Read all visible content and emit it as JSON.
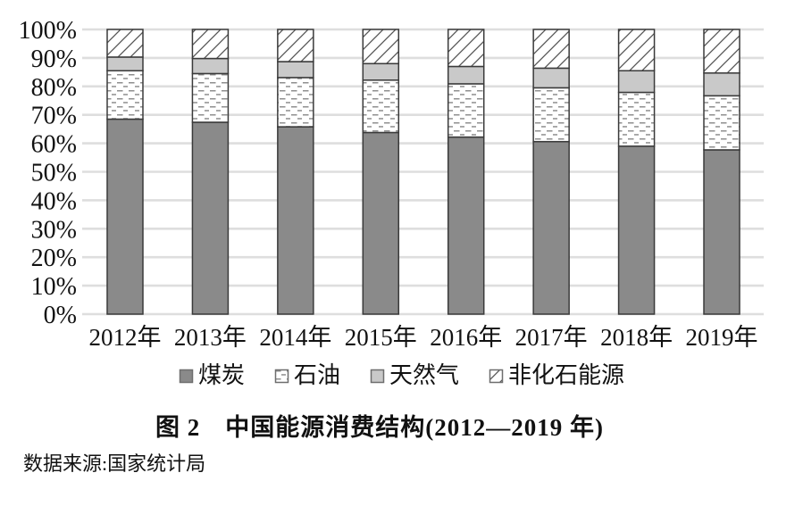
{
  "chart_data": {
    "type": "bar",
    "stacking": "percent",
    "title": "中国能源消费结构(2012—2019年)",
    "categories": [
      "2012年",
      "2013年",
      "2014年",
      "2015年",
      "2016年",
      "2017年",
      "2018年",
      "2019年"
    ],
    "series": [
      {
        "name": "煤炭",
        "pattern": "coal",
        "values": [
          68.5,
          67.4,
          65.8,
          63.8,
          62.2,
          60.6,
          59.0,
          57.7
        ]
      },
      {
        "name": "石油",
        "pattern": "oil",
        "values": [
          17.0,
          17.1,
          17.3,
          18.4,
          18.7,
          18.9,
          18.9,
          19.0
        ]
      },
      {
        "name": "天然气",
        "pattern": "gas",
        "values": [
          4.8,
          5.3,
          5.6,
          5.8,
          6.1,
          6.9,
          7.6,
          8.0
        ]
      },
      {
        "name": "非化石能源",
        "pattern": "nonfossil",
        "values": [
          9.7,
          10.2,
          11.3,
          12.0,
          13.0,
          13.6,
          14.5,
          15.3
        ]
      }
    ],
    "ylim": [
      0,
      100
    ],
    "ytick_step": 10,
    "ytick_suffix": "%",
    "xlabel": "",
    "ylabel": "",
    "grid": "horizontal",
    "legend_position": "bottom"
  },
  "legend": {
    "items": [
      {
        "label": "煤炭",
        "pattern": "coal"
      },
      {
        "label": "石油",
        "pattern": "oil"
      },
      {
        "label": "天然气",
        "pattern": "gas"
      },
      {
        "label": "非化石能源",
        "pattern": "nonfossil"
      }
    ]
  },
  "caption": {
    "text": "图 2　中国能源消费结构(2012—2019 年)"
  },
  "source": {
    "text": "数据来源:国家统计局"
  },
  "colors": {
    "coal": "#8a8a8a",
    "gas": "#c9c9c9",
    "pattern_bg": "#ffffff",
    "pattern_dash": "#8f8f8f",
    "pattern_hatch": "#555555",
    "bar_border": "#3a3a3a",
    "swatch_border": "#6e6e6e",
    "gridline": "#dedede",
    "text": "#111111"
  }
}
